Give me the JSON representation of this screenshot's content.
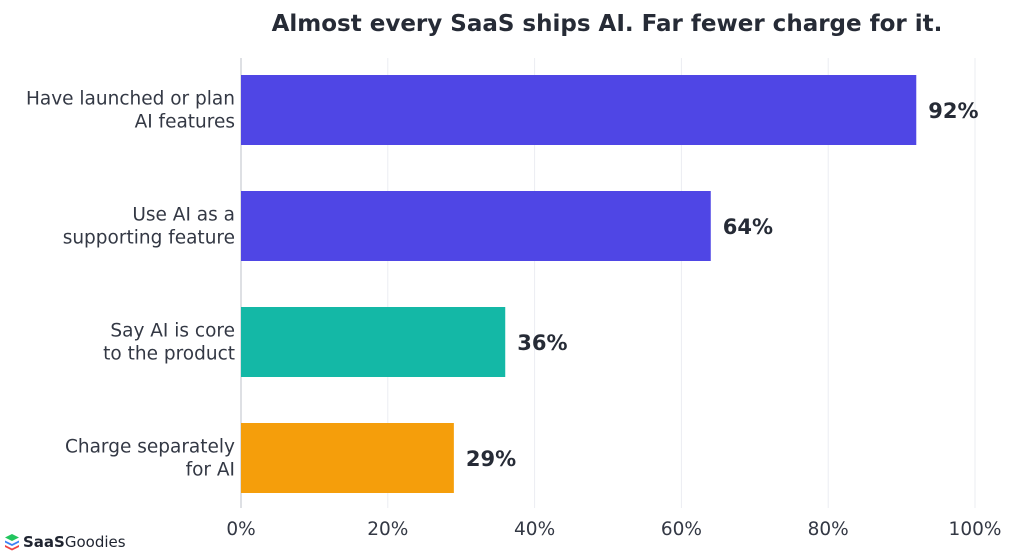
{
  "chart_data": {
    "type": "bar",
    "orientation": "horizontal",
    "title": "Almost every SaaS ships AI. Far fewer charge for it.",
    "categories": [
      [
        "Have launched or plan",
        "AI features"
      ],
      [
        "Use AI as a",
        "supporting feature"
      ],
      [
        "Say AI is core",
        "to the product"
      ],
      [
        "Charge separately",
        "for AI"
      ]
    ],
    "values": [
      92,
      64,
      36,
      29
    ],
    "value_labels": [
      "92%",
      "64%",
      "36%",
      "29%"
    ],
    "colors": [
      "#4f46e5",
      "#4f46e5",
      "#14b8a6",
      "#f59e0b"
    ],
    "xlim": [
      0,
      100
    ],
    "xticks": [
      0,
      20,
      40,
      60,
      80,
      100
    ],
    "xtick_labels": [
      "0%",
      "20%",
      "40%",
      "60%",
      "80%",
      "100%"
    ],
    "grid": true
  },
  "brand": {
    "prefix": "SaaS",
    "suffix": "Goodies",
    "icon": "stacked-layers-logo-icon",
    "icon_colors": [
      "#22c55e",
      "#3b82f6",
      "#ef4444"
    ]
  }
}
